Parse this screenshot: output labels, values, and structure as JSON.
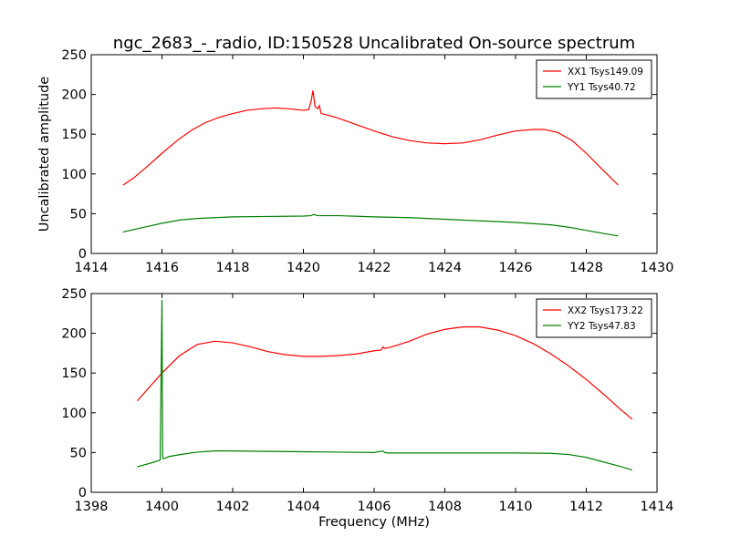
{
  "figure": {
    "title": "ngc_2683_-_radio, ID:150528 Uncalibrated On-source spectrum"
  },
  "chart_data": [
    {
      "type": "line",
      "ylabel": "Uncalibrated amplitude",
      "xlabel": "",
      "xlim": [
        1414,
        1430
      ],
      "ylim": [
        0,
        250
      ],
      "xticks": [
        1414,
        1416,
        1418,
        1420,
        1422,
        1424,
        1426,
        1428,
        1430
      ],
      "yticks": [
        0,
        50,
        100,
        150,
        200,
        250
      ],
      "legend_position": "upper-right",
      "series": [
        {
          "name": "XX1 Tsys149.09",
          "color": "#ff0000",
          "x": [
            1414.9,
            1415.2,
            1415.6,
            1416.0,
            1416.4,
            1416.8,
            1417.2,
            1417.6,
            1418.0,
            1418.4,
            1418.8,
            1419.2,
            1419.6,
            1420.0,
            1420.15,
            1420.22,
            1420.27,
            1420.33,
            1420.4,
            1420.45,
            1420.5,
            1420.7,
            1421.0,
            1421.5,
            1422.0,
            1422.5,
            1423.0,
            1423.5,
            1424.0,
            1424.5,
            1425.0,
            1425.5,
            1426.0,
            1426.5,
            1426.8,
            1427.2,
            1427.6,
            1428.0,
            1428.4,
            1428.9
          ],
          "y": [
            86,
            95,
            110,
            126,
            141,
            154,
            164,
            171,
            176,
            180,
            182,
            183,
            182,
            180,
            181,
            192,
            205,
            185,
            182,
            186,
            176,
            174,
            170,
            162,
            154,
            147,
            142,
            139,
            138,
            139,
            143,
            149,
            154,
            156,
            156,
            152,
            142,
            126,
            108,
            86
          ]
        },
        {
          "name": "YY1 Tsys40.72",
          "color": "#008000",
          "x": [
            1414.9,
            1415.5,
            1416.0,
            1416.5,
            1417.0,
            1417.5,
            1418.0,
            1419.0,
            1420.0,
            1420.2,
            1420.3,
            1420.4,
            1420.6,
            1421.0,
            1422.0,
            1423.0,
            1424.0,
            1425.0,
            1426.0,
            1427.0,
            1427.5,
            1428.0,
            1428.5,
            1428.9
          ],
          "y": [
            27,
            33,
            38,
            42,
            44,
            45,
            46,
            46.5,
            47,
            47.5,
            49,
            47.5,
            47.5,
            47.5,
            46,
            45,
            43,
            41,
            39,
            36,
            33,
            29,
            25,
            22
          ]
        }
      ]
    },
    {
      "type": "line",
      "ylabel": "",
      "xlabel": "Frequency (MHz)",
      "xlim": [
        1398,
        1414
      ],
      "ylim": [
        0,
        250
      ],
      "xticks": [
        1398,
        1400,
        1402,
        1404,
        1406,
        1408,
        1410,
        1412,
        1414
      ],
      "yticks": [
        0,
        50,
        100,
        150,
        200,
        250
      ],
      "legend_position": "upper-right",
      "series": [
        {
          "name": "XX2 Tsys173.22",
          "color": "#ff0000",
          "x": [
            1399.3,
            1399.7,
            1400.0,
            1400.5,
            1401.0,
            1401.5,
            1402.0,
            1402.5,
            1403.0,
            1403.5,
            1404.0,
            1404.5,
            1405.0,
            1405.5,
            1406.0,
            1406.2,
            1406.25,
            1406.3,
            1406.5,
            1407.0,
            1407.5,
            1408.0,
            1408.5,
            1409.0,
            1409.5,
            1410.0,
            1410.5,
            1411.0,
            1411.5,
            1412.0,
            1412.5,
            1413.0,
            1413.3
          ],
          "y": [
            115,
            135,
            150,
            172,
            186,
            190,
            188,
            183,
            177,
            173,
            171,
            171,
            172,
            174,
            178,
            179,
            183,
            181,
            183,
            190,
            199,
            205,
            208,
            208,
            204,
            197,
            187,
            174,
            159,
            142,
            123,
            103,
            92
          ]
        },
        {
          "name": "YY2 Tsys47.83",
          "color": "#008000",
          "x": [
            1399.3,
            1399.7,
            1399.95,
            1400.0,
            1400.02,
            1400.04,
            1400.2,
            1400.6,
            1401.0,
            1401.5,
            1402.0,
            1403.0,
            1404.0,
            1405.0,
            1406.0,
            1406.25,
            1406.3,
            1406.4,
            1407.0,
            1408.0,
            1409.0,
            1410.0,
            1411.0,
            1411.5,
            1412.0,
            1412.5,
            1413.0,
            1413.3
          ],
          "y": [
            32,
            37,
            40.5,
            242,
            44,
            42,
            45,
            48,
            50.5,
            52,
            52,
            51.5,
            51,
            50.5,
            50,
            52,
            50,
            49.5,
            49.5,
            49.5,
            49.5,
            49.5,
            49,
            47.5,
            44,
            38,
            32,
            28
          ]
        }
      ]
    }
  ]
}
